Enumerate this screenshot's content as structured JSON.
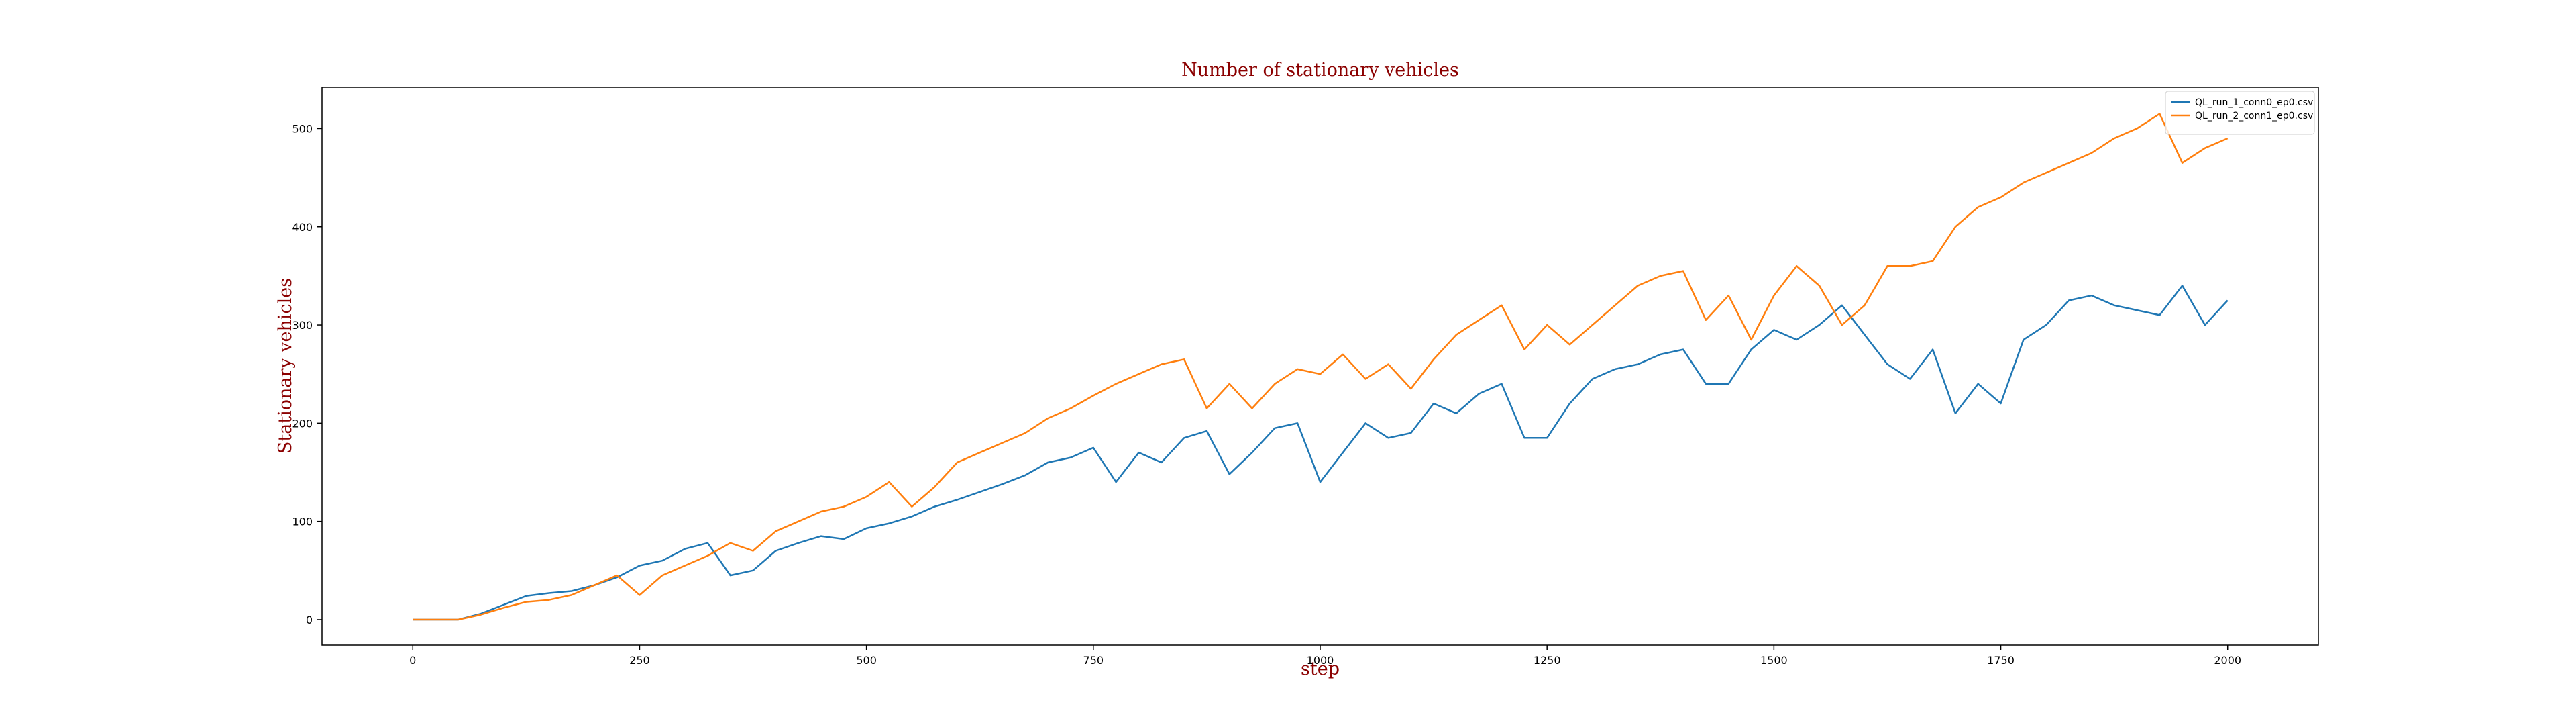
{
  "chart_data": {
    "type": "line",
    "title": "Number of stationary vehicles",
    "xlabel": "step",
    "ylabel": "Stationary vehicles",
    "x": [
      0,
      25,
      50,
      75,
      100,
      125,
      150,
      175,
      200,
      225,
      250,
      275,
      300,
      325,
      350,
      375,
      400,
      425,
      450,
      475,
      500,
      525,
      550,
      575,
      600,
      625,
      650,
      675,
      700,
      725,
      750,
      775,
      800,
      825,
      850,
      875,
      900,
      925,
      950,
      975,
      1000,
      1025,
      1050,
      1075,
      1100,
      1125,
      1150,
      1175,
      1200,
      1225,
      1250,
      1275,
      1300,
      1325,
      1350,
      1375,
      1400,
      1425,
      1450,
      1475,
      1500,
      1525,
      1550,
      1575,
      1600,
      1625,
      1650,
      1675,
      1700,
      1725,
      1750,
      1775,
      1800,
      1825,
      1850,
      1875,
      1900,
      1925,
      1950,
      1975,
      2000
    ],
    "series": [
      {
        "name": "QL_run_1_conn0_ep0.csv",
        "color": "#1f77b4",
        "values": [
          0,
          0,
          0,
          6,
          15,
          24,
          27,
          29,
          35,
          43,
          55,
          60,
          72,
          78,
          45,
          50,
          70,
          78,
          85,
          82,
          93,
          98,
          105,
          115,
          122,
          130,
          138,
          147,
          160,
          165,
          175,
          140,
          170,
          160,
          185,
          192,
          148,
          170,
          195,
          200,
          140,
          170,
          200,
          185,
          190,
          220,
          210,
          230,
          240,
          185,
          185,
          220,
          245,
          255,
          260,
          270,
          275,
          240,
          240,
          275,
          295,
          285,
          300,
          320,
          290,
          260,
          245,
          275,
          210,
          240,
          220,
          285,
          300,
          325,
          330,
          320,
          315,
          310,
          340,
          300,
          325
        ]
      },
      {
        "name": "QL_run_2_conn1_ep0.csv",
        "color": "#ff7f0e",
        "values": [
          0,
          0,
          0,
          5,
          12,
          18,
          20,
          25,
          35,
          45,
          25,
          45,
          55,
          65,
          78,
          70,
          90,
          100,
          110,
          115,
          125,
          140,
          115,
          135,
          160,
          170,
          180,
          190,
          205,
          215,
          228,
          240,
          250,
          260,
          265,
          215,
          240,
          215,
          240,
          255,
          250,
          270,
          245,
          260,
          235,
          265,
          290,
          305,
          320,
          275,
          300,
          280,
          300,
          320,
          340,
          350,
          355,
          305,
          330,
          285,
          330,
          360,
          340,
          300,
          320,
          360,
          360,
          365,
          400,
          420,
          430,
          445,
          455,
          465,
          475,
          490,
          500,
          515,
          465,
          480,
          490
        ]
      }
    ],
    "xlim": [
      -100,
      2100
    ],
    "ylim": [
      -26,
      542
    ],
    "xticks": [
      0,
      250,
      500,
      750,
      1000,
      1250,
      1500,
      1750,
      2000
    ],
    "yticks": [
      0,
      100,
      200,
      300,
      400,
      500
    ],
    "grid": false,
    "legend": "upper right"
  }
}
